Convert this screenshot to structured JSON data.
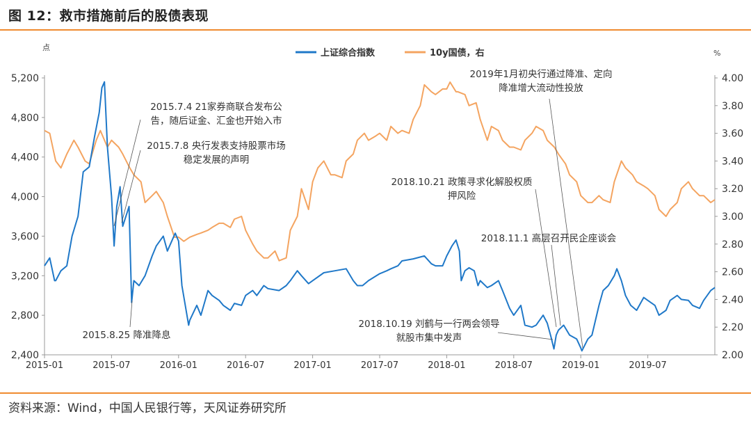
{
  "header": {
    "title": "图 12：救市措施前后的股债表现"
  },
  "footer": {
    "source": "资料来源：Wind，中国人民银行等，天风证券研究所"
  },
  "colors": {
    "accent": "#ef8a2f",
    "shanghai": "#1f78c8",
    "bond": "#f4a460"
  },
  "chart_data": {
    "type": "line",
    "left_axis_unit": "点",
    "right_axis_unit": "%",
    "left_ylim": [
      2400,
      5200
    ],
    "right_ylim": [
      2.0,
      4.0
    ],
    "left_ticks": [
      "2,400",
      "2,800",
      "3,200",
      "3,600",
      "4,000",
      "4,400",
      "4,800",
      "5,200"
    ],
    "right_ticks": [
      "2.00",
      "2.20",
      "2.40",
      "2.60",
      "2.80",
      "3.00",
      "3.20",
      "3.40",
      "3.60",
      "3.80",
      "4.00"
    ],
    "x_ticks": [
      "2015-01",
      "2015-07",
      "2016-01",
      "2016-07",
      "2017-01",
      "2017-07",
      "2018-01",
      "2018-07",
      "2019-01",
      "2019-07"
    ],
    "xlim": [
      "2015-01",
      "2020-01"
    ],
    "grid": false,
    "legend_position": "top-center",
    "series": [
      {
        "name": "上证综合指数",
        "axis": "left",
        "color": "#1f78c8",
        "points": [
          [
            "2015-01",
            3300
          ],
          [
            "2015-01-15",
            3380
          ],
          [
            "2015-01-28",
            3150
          ],
          [
            "2015-02",
            3150
          ],
          [
            "2015-02-15",
            3250
          ],
          [
            "2015-03",
            3300
          ],
          [
            "2015-03-15",
            3600
          ],
          [
            "2015-04",
            3800
          ],
          [
            "2015-04-15",
            4250
          ],
          [
            "2015-05",
            4300
          ],
          [
            "2015-05-15",
            4600
          ],
          [
            "2015-05-28",
            4850
          ],
          [
            "2015-06-05",
            5100
          ],
          [
            "2015-06-12",
            5160
          ],
          [
            "2015-06-20",
            4500
          ],
          [
            "2015-07",
            4000
          ],
          [
            "2015-07-08",
            3500
          ],
          [
            "2015-07-15",
            3900
          ],
          [
            "2015-07-24",
            4100
          ],
          [
            "2015-08",
            3700
          ],
          [
            "2015-08-18",
            3900
          ],
          [
            "2015-08-25",
            2930
          ],
          [
            "2015-09",
            3150
          ],
          [
            "2015-09-15",
            3100
          ],
          [
            "2015-10",
            3200
          ],
          [
            "2015-10-20",
            3400
          ],
          [
            "2015-11",
            3500
          ],
          [
            "2015-11-20",
            3600
          ],
          [
            "2015-12",
            3450
          ],
          [
            "2015-12-22",
            3630
          ],
          [
            "2016-01",
            3550
          ],
          [
            "2016-01-10",
            3100
          ],
          [
            "2016-01-28",
            2700
          ],
          [
            "2016-02",
            2750
          ],
          [
            "2016-02-20",
            2900
          ],
          [
            "2016-03",
            2800
          ],
          [
            "2016-03-20",
            3050
          ],
          [
            "2016-04",
            3000
          ],
          [
            "2016-04-20",
            2950
          ],
          [
            "2016-05",
            2900
          ],
          [
            "2016-05-20",
            2850
          ],
          [
            "2016-06",
            2920
          ],
          [
            "2016-06-20",
            2900
          ],
          [
            "2016-07",
            3000
          ],
          [
            "2016-07-20",
            3050
          ],
          [
            "2016-08",
            3000
          ],
          [
            "2016-08-20",
            3100
          ],
          [
            "2016-09",
            3070
          ],
          [
            "2016-10",
            3050
          ],
          [
            "2016-10-20",
            3100
          ],
          [
            "2016-11",
            3150
          ],
          [
            "2016-11-20",
            3250
          ],
          [
            "2016-12",
            3200
          ],
          [
            "2016-12-20",
            3120
          ],
          [
            "2017-01",
            3150
          ],
          [
            "2017-02",
            3230
          ],
          [
            "2017-03",
            3250
          ],
          [
            "2017-04",
            3270
          ],
          [
            "2017-04-20",
            3150
          ],
          [
            "2017-05",
            3100
          ],
          [
            "2017-05-15",
            3100
          ],
          [
            "2017-06",
            3150
          ],
          [
            "2017-07",
            3220
          ],
          [
            "2017-07-20",
            3250
          ],
          [
            "2017-08",
            3270
          ],
          [
            "2017-08-20",
            3300
          ],
          [
            "2017-09",
            3350
          ],
          [
            "2017-10",
            3370
          ],
          [
            "2017-11",
            3400
          ],
          [
            "2017-11-20",
            3320
          ],
          [
            "2017-12",
            3300
          ],
          [
            "2017-12-20",
            3300
          ],
          [
            "2018-01",
            3400
          ],
          [
            "2018-01-15",
            3500
          ],
          [
            "2018-01-26",
            3560
          ],
          [
            "2018-02-05",
            3450
          ],
          [
            "2018-02-10",
            3150
          ],
          [
            "2018-02-20",
            3250
          ],
          [
            "2018-03",
            3280
          ],
          [
            "2018-03-15",
            3250
          ],
          [
            "2018-03-25",
            3100
          ],
          [
            "2018-04",
            3150
          ],
          [
            "2018-04-20",
            3080
          ],
          [
            "2018-05",
            3100
          ],
          [
            "2018-05-20",
            3150
          ],
          [
            "2018-06",
            3050
          ],
          [
            "2018-06-20",
            2870
          ],
          [
            "2018-07",
            2800
          ],
          [
            "2018-07-20",
            2900
          ],
          [
            "2018-08",
            2700
          ],
          [
            "2018-08-20",
            2680
          ],
          [
            "2018-09",
            2700
          ],
          [
            "2018-09-20",
            2800
          ],
          [
            "2018-10",
            2720
          ],
          [
            "2018-10-11",
            2580
          ],
          [
            "2018-10-19",
            2460
          ],
          [
            "2018-10-25",
            2600
          ],
          [
            "2018-11",
            2650
          ],
          [
            "2018-11-15",
            2700
          ],
          [
            "2018-12",
            2600
          ],
          [
            "2018-12-20",
            2560
          ],
          [
            "2019-01",
            2470
          ],
          [
            "2019-01-04",
            2440
          ],
          [
            "2019-01-20",
            2560
          ],
          [
            "2019-02",
            2600
          ],
          [
            "2019-02-20",
            2900
          ],
          [
            "2019-03",
            3050
          ],
          [
            "2019-03-15",
            3100
          ],
          [
            "2019-04",
            3200
          ],
          [
            "2019-04-08",
            3270
          ],
          [
            "2019-04-20",
            3150
          ],
          [
            "2019-05",
            3000
          ],
          [
            "2019-05-15",
            2900
          ],
          [
            "2019-06",
            2850
          ],
          [
            "2019-06-20",
            2980
          ],
          [
            "2019-07",
            2950
          ],
          [
            "2019-07-20",
            2900
          ],
          [
            "2019-08",
            2800
          ],
          [
            "2019-08-20",
            2850
          ],
          [
            "2019-09",
            2950
          ],
          [
            "2019-09-20",
            3000
          ],
          [
            "2019-10",
            2960
          ],
          [
            "2019-10-20",
            2950
          ],
          [
            "2019-11",
            2900
          ],
          [
            "2019-11-20",
            2870
          ],
          [
            "2019-12",
            2950
          ],
          [
            "2019-12-20",
            3050
          ],
          [
            "2020-01",
            3080
          ]
        ]
      },
      {
        "name": "10y国债，右",
        "axis": "right",
        "color": "#f4a460",
        "points": [
          [
            "2015-01",
            3.62
          ],
          [
            "2015-01-15",
            3.6
          ],
          [
            "2015-02",
            3.4
          ],
          [
            "2015-02-15",
            3.35
          ],
          [
            "2015-03",
            3.45
          ],
          [
            "2015-03-20",
            3.55
          ],
          [
            "2015-04",
            3.5
          ],
          [
            "2015-04-20",
            3.4
          ],
          [
            "2015-05",
            3.38
          ],
          [
            "2015-05-20",
            3.55
          ],
          [
            "2015-06",
            3.62
          ],
          [
            "2015-06-20",
            3.5
          ],
          [
            "2015-07",
            3.55
          ],
          [
            "2015-07-20",
            3.5
          ],
          [
            "2015-08",
            3.45
          ],
          [
            "2015-08-20",
            3.35
          ],
          [
            "2015-09",
            3.3
          ],
          [
            "2015-09-20",
            3.25
          ],
          [
            "2015-10",
            3.1
          ],
          [
            "2015-10-20",
            3.15
          ],
          [
            "2015-11",
            3.18
          ],
          [
            "2015-11-20",
            3.1
          ],
          [
            "2015-12",
            3.0
          ],
          [
            "2015-12-20",
            2.85
          ],
          [
            "2016-01",
            2.85
          ],
          [
            "2016-01-15",
            2.82
          ],
          [
            "2016-02",
            2.85
          ],
          [
            "2016-02-20",
            2.87
          ],
          [
            "2016-03",
            2.88
          ],
          [
            "2016-03-20",
            2.9
          ],
          [
            "2016-04",
            2.92
          ],
          [
            "2016-04-20",
            2.95
          ],
          [
            "2016-05",
            2.95
          ],
          [
            "2016-05-20",
            2.92
          ],
          [
            "2016-06",
            2.98
          ],
          [
            "2016-06-20",
            3.0
          ],
          [
            "2016-07",
            2.9
          ],
          [
            "2016-07-20",
            2.8
          ],
          [
            "2016-08",
            2.75
          ],
          [
            "2016-08-20",
            2.7
          ],
          [
            "2016-09",
            2.7
          ],
          [
            "2016-09-20",
            2.75
          ],
          [
            "2016-10",
            2.68
          ],
          [
            "2016-10-20",
            2.7
          ],
          [
            "2016-11",
            2.9
          ],
          [
            "2016-11-20",
            3.0
          ],
          [
            "2016-12",
            3.2
          ],
          [
            "2016-12-20",
            3.05
          ],
          [
            "2017-01",
            3.25
          ],
          [
            "2017-01-15",
            3.35
          ],
          [
            "2017-02",
            3.4
          ],
          [
            "2017-02-20",
            3.3
          ],
          [
            "2017-03",
            3.3
          ],
          [
            "2017-03-20",
            3.28
          ],
          [
            "2017-04",
            3.4
          ],
          [
            "2017-04-20",
            3.45
          ],
          [
            "2017-05",
            3.55
          ],
          [
            "2017-05-20",
            3.6
          ],
          [
            "2017-06",
            3.55
          ],
          [
            "2017-06-20",
            3.58
          ],
          [
            "2017-07",
            3.6
          ],
          [
            "2017-07-20",
            3.55
          ],
          [
            "2017-08",
            3.65
          ],
          [
            "2017-08-20",
            3.6
          ],
          [
            "2017-09",
            3.62
          ],
          [
            "2017-09-20",
            3.6
          ],
          [
            "2017-10",
            3.7
          ],
          [
            "2017-10-20",
            3.8
          ],
          [
            "2017-11",
            3.95
          ],
          [
            "2017-11-20",
            3.9
          ],
          [
            "2017-12",
            3.88
          ],
          [
            "2017-12-20",
            3.92
          ],
          [
            "2018-01",
            3.92
          ],
          [
            "2018-01-10",
            3.97
          ],
          [
            "2018-01-26",
            3.9
          ],
          [
            "2018-02",
            3.9
          ],
          [
            "2018-02-20",
            3.88
          ],
          [
            "2018-03",
            3.8
          ],
          [
            "2018-03-20",
            3.82
          ],
          [
            "2018-04",
            3.7
          ],
          [
            "2018-04-20",
            3.55
          ],
          [
            "2018-05",
            3.65
          ],
          [
            "2018-05-20",
            3.62
          ],
          [
            "2018-06",
            3.55
          ],
          [
            "2018-06-20",
            3.5
          ],
          [
            "2018-07",
            3.5
          ],
          [
            "2018-07-20",
            3.48
          ],
          [
            "2018-08",
            3.55
          ],
          [
            "2018-08-20",
            3.6
          ],
          [
            "2018-09",
            3.65
          ],
          [
            "2018-09-20",
            3.62
          ],
          [
            "2018-10",
            3.55
          ],
          [
            "2018-10-20",
            3.5
          ],
          [
            "2018-11",
            3.45
          ],
          [
            "2018-11-20",
            3.38
          ],
          [
            "2018-12",
            3.3
          ],
          [
            "2018-12-20",
            3.25
          ],
          [
            "2019-01",
            3.15
          ],
          [
            "2019-01-20",
            3.1
          ],
          [
            "2019-02",
            3.1
          ],
          [
            "2019-02-20",
            3.15
          ],
          [
            "2019-03",
            3.12
          ],
          [
            "2019-03-20",
            3.1
          ],
          [
            "2019-04",
            3.25
          ],
          [
            "2019-04-20",
            3.4
          ],
          [
            "2019-05",
            3.35
          ],
          [
            "2019-05-20",
            3.3
          ],
          [
            "2019-06",
            3.25
          ],
          [
            "2019-06-20",
            3.22
          ],
          [
            "2019-07",
            3.2
          ],
          [
            "2019-07-20",
            3.15
          ],
          [
            "2019-08",
            3.05
          ],
          [
            "2019-08-20",
            3.0
          ],
          [
            "2019-09",
            3.05
          ],
          [
            "2019-09-20",
            3.1
          ],
          [
            "2019-10",
            3.2
          ],
          [
            "2019-10-20",
            3.25
          ],
          [
            "2019-11",
            3.2
          ],
          [
            "2019-11-20",
            3.15
          ],
          [
            "2019-12",
            3.15
          ],
          [
            "2019-12-20",
            3.1
          ],
          [
            "2020-01",
            3.12
          ]
        ]
      }
    ],
    "annotations": [
      {
        "id": "ann-2015-7-4",
        "lines": [
          "2015.7.4 21家券商联合发布公",
          "告，随后证金、汇金也开始入市"
        ]
      },
      {
        "id": "ann-2015-7-8",
        "lines": [
          "2015.7.8 央行发表支持股票市场",
          "稳定发展的声明"
        ]
      },
      {
        "id": "ann-2015-8-25",
        "lines": [
          "2015.8.25 降准降息"
        ]
      },
      {
        "id": "ann-2019-1",
        "lines": [
          "2019年1月初央行通过降准、定向",
          "降准增大流动性投放"
        ]
      },
      {
        "id": "ann-2018-10-21",
        "lines": [
          "2018.10.21 政策寻求化解股权质",
          "押风险"
        ]
      },
      {
        "id": "ann-2018-11-1",
        "lines": [
          "2018.11.1 高层召开民企座谈会"
        ]
      },
      {
        "id": "ann-2018-10-19",
        "lines": [
          "2018.10.19 刘鹤与一行两会领导",
          "就股市集中发声"
        ]
      }
    ]
  }
}
